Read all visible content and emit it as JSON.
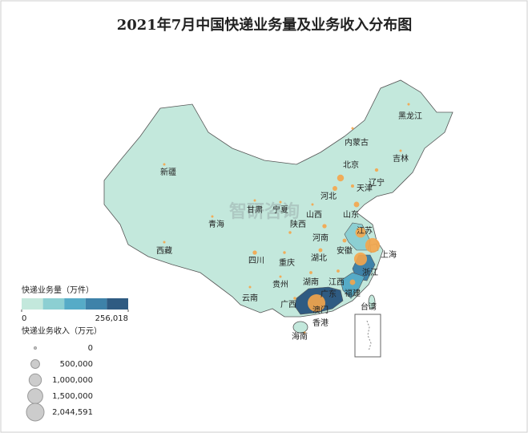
{
  "map": {
    "title": "2021年7月中国快递业务量及业务收入分布图",
    "watermark": "智研咨询",
    "volume_legend": {
      "title": "快递业务量（万件）",
      "colors": [
        "#c3e8dc",
        "#8ccfd2",
        "#56abc7",
        "#3e82a9",
        "#2f5b82"
      ],
      "ticks": [
        0,
        {
          "value": 256018,
          "label": "256,018"
        }
      ]
    },
    "revenue_legend": {
      "title": "快递业务收入（万元）",
      "ticks": [
        0,
        {
          "value": 500000,
          "label": "500,000"
        },
        {
          "value": 1000000,
          "label": "1,000,000"
        },
        {
          "value": 1500000,
          "label": "1,500,000"
        },
        {
          "value": 2044591,
          "label": "2,044,591"
        }
      ]
    },
    "provinces": [
      {
        "name": "新疆",
        "revenue": 20000
      },
      {
        "name": "西藏",
        "revenue": 3000
      },
      {
        "name": "青海",
        "revenue": 3000
      },
      {
        "name": "甘肃",
        "revenue": 15000
      },
      {
        "name": "宁夏",
        "revenue": 8000
      },
      {
        "name": "内蒙古",
        "revenue": 20000
      },
      {
        "name": "黑龙江",
        "revenue": 40000
      },
      {
        "name": "吉林",
        "revenue": 30000
      },
      {
        "name": "辽宁",
        "revenue": 80000
      },
      {
        "name": "北京",
        "revenue": 300000
      },
      {
        "name": "天津",
        "revenue": 70000
      },
      {
        "name": "河北",
        "revenue": 150000
      },
      {
        "name": "山西",
        "revenue": 30000
      },
      {
        "name": "陕西",
        "revenue": 50000
      },
      {
        "name": "山东",
        "revenue": 200000
      },
      {
        "name": "河南",
        "revenue": 120000
      },
      {
        "name": "江苏",
        "revenue": 700000,
        "volume": 90000
      },
      {
        "name": "安徽",
        "revenue": 100000
      },
      {
        "name": "上海",
        "revenue": 1400000,
        "volume": 30000
      },
      {
        "name": "湖北",
        "revenue": 100000
      },
      {
        "name": "四川",
        "revenue": 120000
      },
      {
        "name": "重庆",
        "revenue": 50000
      },
      {
        "name": "浙江",
        "revenue": 1100000,
        "volume": 200000
      },
      {
        "name": "湖南",
        "revenue": 60000
      },
      {
        "name": "贵州",
        "revenue": 30000
      },
      {
        "name": "江西",
        "revenue": 60000
      },
      {
        "name": "云南",
        "revenue": 30000
      },
      {
        "name": "广西",
        "revenue": 50000
      },
      {
        "name": "福建",
        "revenue": 200000,
        "volume": 110000
      },
      {
        "name": "广东",
        "revenue": 2044591,
        "volume": 256018
      },
      {
        "name": "台湾"
      },
      {
        "name": "澳门"
      },
      {
        "name": "香港"
      },
      {
        "name": "海南",
        "revenue": 8000
      }
    ]
  }
}
